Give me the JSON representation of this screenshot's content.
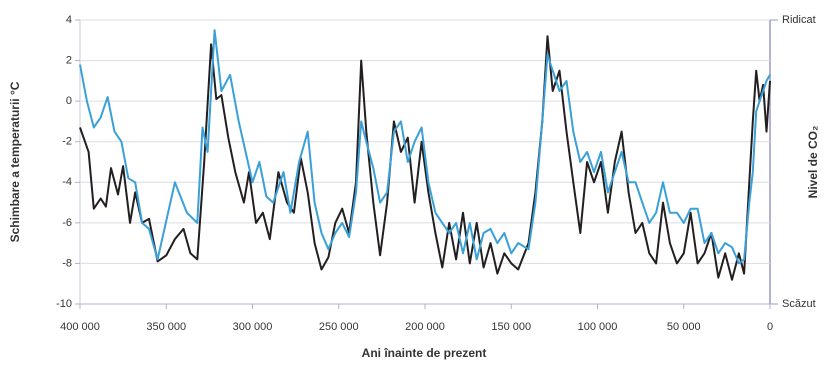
{
  "chart_data": {
    "type": "line",
    "y_label": "Schimbare a temperaturii °C",
    "x_label": "Ani înainte de prezent",
    "y2_label": "Nivel de CO₂",
    "y2_top_label": "Ridicat",
    "y2_bottom_label": "Scăzut",
    "xlim": [
      400000,
      0
    ],
    "xticks": [
      {
        "value": 400000,
        "label": "400 000"
      },
      {
        "value": 350000,
        "label": "350 000"
      },
      {
        "value": 300000,
        "label": "300 000"
      },
      {
        "value": 250000,
        "label": "250 000"
      },
      {
        "value": 200000,
        "label": "200 000"
      },
      {
        "value": 150000,
        "label": "150 000"
      },
      {
        "value": 100000,
        "label": "100 000"
      },
      {
        "value": 50000,
        "label": "50 000"
      },
      0
    ],
    "ylim": [
      -10,
      4
    ],
    "yticks": [
      4,
      2,
      0,
      -2,
      -4,
      -6,
      -8,
      -10
    ],
    "grid": true,
    "series": [
      {
        "color": "#231f20",
        "x": [
          400000,
          395000,
          392000,
          388000,
          385000,
          382000,
          378000,
          375000,
          371000,
          368000,
          364000,
          360000,
          355000,
          350000,
          345000,
          340000,
          336000,
          332000,
          328000,
          324000,
          321000,
          318000,
          314000,
          310000,
          305000,
          302000,
          298000,
          294000,
          290000,
          285000,
          280000,
          276000,
          272000,
          268000,
          264000,
          260000,
          256000,
          252000,
          248000,
          244000,
          240000,
          237000,
          234000,
          230000,
          226000,
          222000,
          218000,
          214000,
          210000,
          206000,
          202000,
          198000,
          194000,
          190000,
          186000,
          182000,
          178000,
          174000,
          170000,
          166000,
          162000,
          158000,
          154000,
          150000,
          146000,
          140000,
          136000,
          132000,
          129000,
          126000,
          122000,
          118000,
          114000,
          110000,
          106000,
          102000,
          98000,
          94000,
          90000,
          86000,
          82000,
          78000,
          74000,
          70000,
          66000,
          62000,
          58000,
          54000,
          50000,
          46000,
          42000,
          38000,
          34000,
          30000,
          26000,
          22000,
          18000,
          15000,
          12000,
          10000,
          8000,
          6000,
          4000,
          2000,
          0
        ],
        "values": [
          -1.3,
          -2.5,
          -5.3,
          -4.8,
          -5.2,
          -3.3,
          -4.6,
          -3.2,
          -6,
          -4.5,
          -6,
          -5.8,
          -7.9,
          -7.6,
          -6.8,
          -6.3,
          -7.5,
          -7.8,
          -3,
          2.8,
          0.1,
          0.3,
          -1.8,
          -3.5,
          -5,
          -3.5,
          -6,
          -5.5,
          -6.8,
          -3.5,
          -5,
          -5.5,
          -2.8,
          -4.5,
          -7,
          -8.3,
          -7.7,
          -6,
          -5.3,
          -6.5,
          -4,
          2,
          -1.5,
          -5,
          -7.6,
          -5,
          -1,
          -2.5,
          -1.8,
          -5,
          -2,
          -4.5,
          -6.5,
          -8.2,
          -6,
          -7.8,
          -5.5,
          -8,
          -6,
          -8.2,
          -7,
          -8.5,
          -7.5,
          -8,
          -8.3,
          -7,
          -4.5,
          -1,
          3.2,
          0.5,
          1.5,
          -1.5,
          -4,
          -6.5,
          -3,
          -4,
          -3,
          -5.5,
          -3,
          -1.5,
          -4.5,
          -6.5,
          -6,
          -7.5,
          -8,
          -5,
          -7,
          -8,
          -7.5,
          -5.5,
          -8,
          -7.5,
          -6.5,
          -8.7,
          -7.5,
          -8.8,
          -7.5,
          -8.5,
          -4,
          -1,
          1.5,
          0,
          0.8,
          -1.5,
          1
        ]
      },
      {
        "color": "#3aa0d8",
        "x": [
          400000,
          396000,
          392000,
          388000,
          384000,
          380000,
          376000,
          372000,
          368000,
          364000,
          360000,
          355000,
          345000,
          338000,
          332000,
          329000,
          326000,
          322000,
          318000,
          313000,
          308000,
          304000,
          300000,
          296000,
          292000,
          288000,
          282000,
          278000,
          273000,
          268000,
          264000,
          260000,
          256000,
          252000,
          248000,
          244000,
          240000,
          237000,
          234000,
          230000,
          226000,
          222000,
          218000,
          214000,
          210000,
          206000,
          202000,
          198000,
          194000,
          190000,
          186000,
          182000,
          178000,
          174000,
          170000,
          166000,
          162000,
          158000,
          154000,
          150000,
          146000,
          140000,
          136000,
          132000,
          129000,
          126000,
          122000,
          118000,
          114000,
          110000,
          106000,
          102000,
          98000,
          94000,
          90000,
          86000,
          82000,
          78000,
          74000,
          70000,
          66000,
          62000,
          58000,
          54000,
          50000,
          46000,
          42000,
          38000,
          34000,
          30000,
          26000,
          22000,
          18000,
          15000,
          12000,
          10000,
          8000,
          6000,
          4000,
          2000,
          0
        ],
        "values": [
          1.8,
          0,
          -1.3,
          -0.8,
          0.2,
          -1.5,
          -2,
          -3.8,
          -4,
          -6,
          -6.3,
          -7.8,
          -4,
          -5.5,
          -6,
          -1.3,
          -2.5,
          3.5,
          0.5,
          1.3,
          -1,
          -2.5,
          -4,
          -3,
          -4.7,
          -5,
          -3.5,
          -5.5,
          -3,
          -1.5,
          -5,
          -6.5,
          -7.3,
          -6.5,
          -6,
          -6.7,
          -4.5,
          -1,
          -2,
          -3.3,
          -5,
          -4.5,
          -1.5,
          -1,
          -3,
          -2,
          -1.3,
          -4,
          -5.5,
          -6,
          -6.5,
          -6,
          -7.5,
          -6,
          -7.8,
          -6.5,
          -6.3,
          -7,
          -6.5,
          -7.5,
          -7,
          -7.3,
          -5,
          -1,
          2.3,
          1.5,
          0.5,
          1,
          -1.5,
          -3,
          -2.5,
          -3.5,
          -2.5,
          -4.5,
          -3.5,
          -2.5,
          -4,
          -4,
          -5,
          -6,
          -5.5,
          -4,
          -5.5,
          -5.5,
          -6,
          -5.3,
          -5.3,
          -7,
          -6.5,
          -7.5,
          -7,
          -7.2,
          -8,
          -7.8,
          -5,
          -3.5,
          -0.5,
          0,
          0.5,
          1,
          1.3
        ]
      }
    ]
  }
}
